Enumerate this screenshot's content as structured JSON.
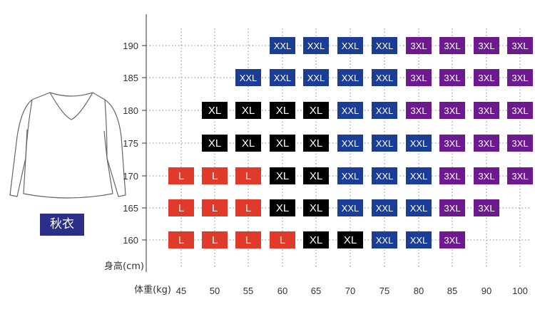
{
  "garment": {
    "label": "秋衣"
  },
  "axes": {
    "ylabel_text": "身高(cm)",
    "xlabel_text": "体重(kg)"
  },
  "colors": {
    "L": "#e03a2a",
    "XL": "#000000",
    "XXL": "#1b3e94",
    "3XL": "#6d1a8e"
  },
  "chart_data": {
    "type": "table",
    "title": "",
    "xlabel": "体重(kg)",
    "ylabel": "身高(cm)",
    "weights": [
      "45",
      "50",
      "55",
      "60",
      "65",
      "70",
      "75",
      "80",
      "85",
      "90",
      "100"
    ],
    "heights": [
      "190",
      "185",
      "180",
      "175",
      "170",
      "165",
      "160"
    ],
    "grid": true,
    "rows": [
      {
        "height": "190",
        "sizes": [
          null,
          null,
          null,
          "XXL",
          "XXL",
          "XXL",
          "XXL",
          "3XL",
          "3XL",
          "3XL",
          "3XL"
        ]
      },
      {
        "height": "185",
        "sizes": [
          null,
          null,
          "XXL",
          "XXL",
          "XXL",
          "XXL",
          "XXL",
          "3XL",
          "3XL",
          "3XL",
          "3XL"
        ]
      },
      {
        "height": "180",
        "sizes": [
          null,
          "XL",
          "XL",
          "XL",
          "XL",
          "XXL",
          "XXL",
          "3XL",
          "3XL",
          "3XL",
          "3XL"
        ]
      },
      {
        "height": "175",
        "sizes": [
          null,
          "XL",
          "XL",
          "XL",
          "XL",
          "XXL",
          "XXL",
          "XXL",
          "3XL",
          "3XL",
          "3XL"
        ]
      },
      {
        "height": "170",
        "sizes": [
          "L",
          "L",
          "L",
          "XL",
          "XL",
          "XXL",
          "XXL",
          "XXL",
          "3XL",
          "3XL",
          "3XL"
        ]
      },
      {
        "height": "165",
        "sizes": [
          "L",
          "L",
          "L",
          "XL",
          "XL",
          "XXL",
          "XXL",
          "XXL",
          "3XL",
          "3XL",
          null
        ]
      },
      {
        "height": "160",
        "sizes": [
          "L",
          "L",
          "L",
          "L",
          "XL",
          "XL",
          "XXL",
          "XXL",
          "3XL",
          null,
          null
        ]
      }
    ]
  }
}
